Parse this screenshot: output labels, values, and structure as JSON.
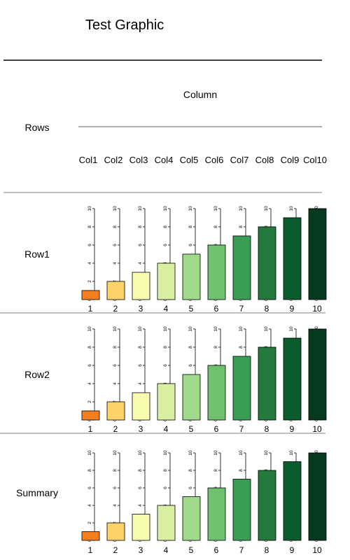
{
  "title": "Test Graphic",
  "header": {
    "column_title": "Column",
    "rows_title": "Rows",
    "columns": [
      "Col1",
      "Col2",
      "Col3",
      "Col4",
      "Col5",
      "Col6",
      "Col7",
      "Col8",
      "Col9",
      "Col10"
    ]
  },
  "chart_data": [
    {
      "type": "bar",
      "panel": "Row1",
      "categories": [
        "1",
        "2",
        "3",
        "4",
        "5",
        "6",
        "7",
        "8",
        "9",
        "10"
      ],
      "values": [
        1,
        2,
        3,
        4,
        5,
        6,
        7,
        8,
        9,
        10
      ],
      "ylim": [
        0,
        10
      ],
      "yticks": [
        "0",
        "2",
        "4",
        "6",
        "8",
        "10"
      ]
    },
    {
      "type": "bar",
      "panel": "Row2",
      "categories": [
        "1",
        "2",
        "3",
        "4",
        "5",
        "6",
        "7",
        "8",
        "9",
        "10"
      ],
      "values": [
        1,
        2,
        3,
        4,
        5,
        6,
        7,
        8,
        9,
        10
      ],
      "ylim": [
        0,
        10
      ],
      "yticks": [
        "0",
        "2",
        "4",
        "6",
        "8",
        "10"
      ]
    },
    {
      "type": "bar",
      "panel": "Summary",
      "categories": [
        "1",
        "2",
        "3",
        "4",
        "5",
        "6",
        "7",
        "8",
        "9",
        "10"
      ],
      "values": [
        1,
        2,
        3,
        4,
        5,
        6,
        7,
        8,
        9,
        10
      ],
      "ylim": [
        0,
        10
      ],
      "yticks": [
        "0",
        "2",
        "4",
        "6",
        "8",
        "10"
      ]
    }
  ],
  "colors": {
    "bars": [
      "#f47f1f",
      "#fdd26a",
      "#f7fcb1",
      "#d9f0a3",
      "#a1d98a",
      "#6fc06f",
      "#3a9d55",
      "#237a3b",
      "#0a5c2c",
      "#053a20"
    ],
    "rule_dark": "#000000",
    "rule_gray": "#808080"
  }
}
